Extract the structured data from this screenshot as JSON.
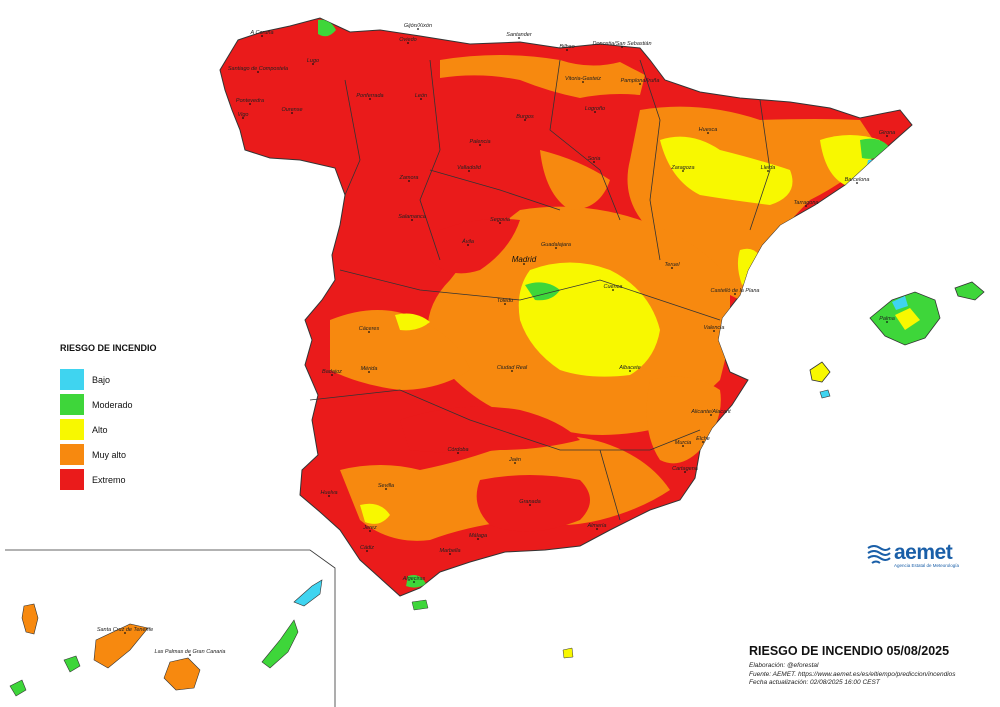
{
  "map": {
    "title": "RIESGO DE INCENDIO 05/08/2025",
    "credits": {
      "elaboracion": "Elaboración: @eforestal",
      "fuente": "Fuente: AEMET. https://www.aemet.es/es/eltiempo/prediccion/incendios",
      "actualizacion": "Fecha actualización: 02/08/2025 16:00 CEST"
    }
  },
  "legend": {
    "title": "RIESGO DE INCENDIO",
    "items": [
      {
        "label": "Bajo",
        "color": "#3fd4f0"
      },
      {
        "label": "Moderado",
        "color": "#3ed63a"
      },
      {
        "label": "Alto",
        "color": "#f8f800"
      },
      {
        "label": "Muy alto",
        "color": "#f7890f"
      },
      {
        "label": "Extremo",
        "color": "#ea1b1b"
      }
    ]
  },
  "logo": {
    "name": "aemet",
    "subtitle": "Agencia Estatal de Meteorología",
    "color": "#1a5fa8"
  },
  "cities": [
    "A Coruña",
    "Gijón/Xixón",
    "Oviedo",
    "Santander",
    "Bilbao",
    "Donostia/San Sebastián",
    "Lugo",
    "Santiago de Compostela",
    "Pontevedra",
    "Vigo",
    "Ourense",
    "Ponferrada",
    "León",
    "Vitoria-Gasteiz",
    "Logroño",
    "Pamplona/Iruña",
    "Burgos",
    "Palencia",
    "Huesca",
    "Girona",
    "Lleida",
    "Zaragoza",
    "Barcelona",
    "Tarragona",
    "Soria",
    "Zamora",
    "Valladolid",
    "Salamanca",
    "Segovia",
    "Ávila",
    "Guadalajara",
    "Madrid",
    "Teruel",
    "Castelló de la Plana",
    "Palma",
    "Cuenca",
    "Toledo",
    "Valencia",
    "Cáceres",
    "Mérida",
    "Badajoz",
    "Ciudad Real",
    "Albacete",
    "Alicante/Alacant",
    "Murcia",
    "Elche",
    "Cartagena",
    "Córdoba",
    "Jaén",
    "Huelva",
    "Sevilla",
    "Granada",
    "Almería",
    "Jerez",
    "Cádiz",
    "Marbella",
    "Málaga",
    "Algeciras",
    "Santa Cruz de Tenerife",
    "Las Palmas de Gran Canaria"
  ]
}
